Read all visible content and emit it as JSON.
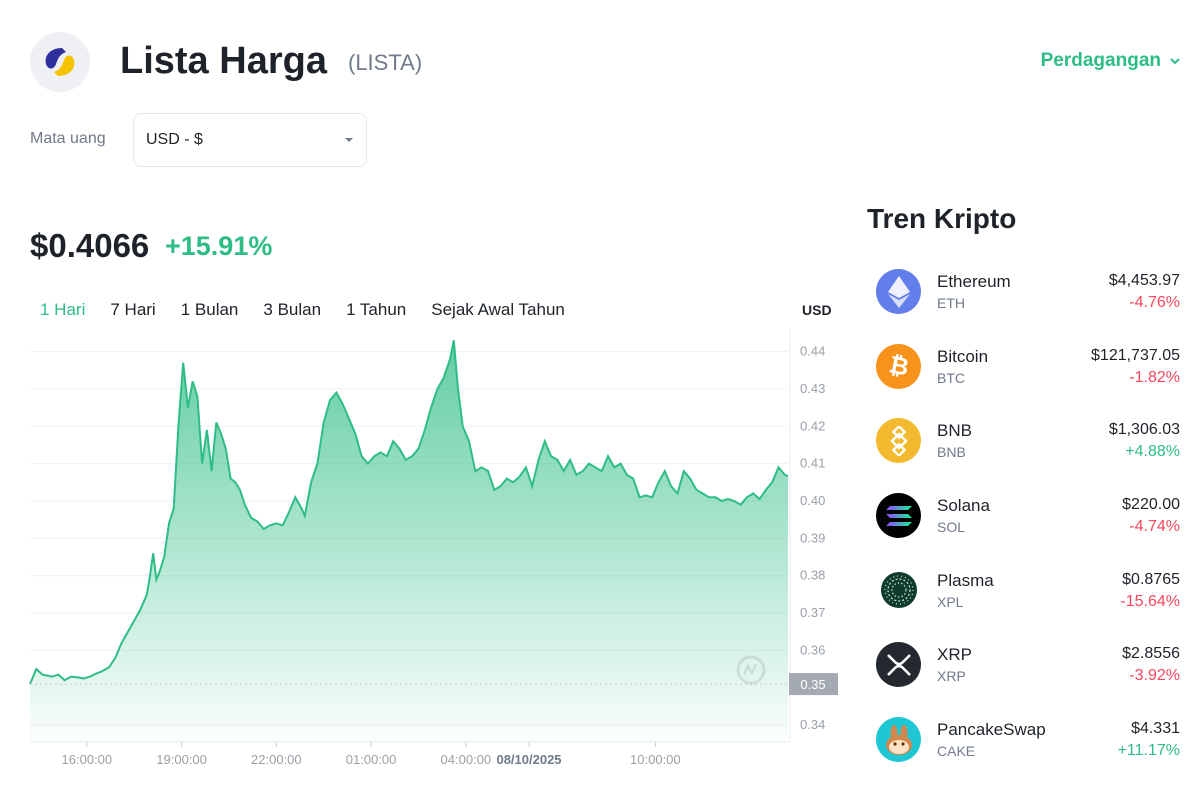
{
  "header": {
    "title": "Lista Harga",
    "symbol": "(LISTA)",
    "trade_label": "Perdagangan"
  },
  "currency": {
    "label": "Mata uang",
    "selected": "USD - $"
  },
  "price": {
    "value": "$0.4066",
    "change": "+15.91%"
  },
  "tabs": [
    "1 Hari",
    "7 Hari",
    "1 Bulan",
    "3 Bulan",
    "1 Tahun",
    "Sejak Awal Tahun"
  ],
  "active_tab": "1 Hari",
  "colors": {
    "up": "#2ebd85",
    "down": "#f6465d",
    "text": "#1e2329",
    "muted": "#707a8a"
  },
  "chart_data": {
    "type": "area",
    "currency_label": "USD",
    "y_ticks": [
      "0.44",
      "0.43",
      "0.42",
      "0.41",
      "0.40",
      "0.39",
      "0.38",
      "0.37",
      "0.36",
      "0.34"
    ],
    "y_tick_values": [
      0.44,
      0.43,
      0.42,
      0.41,
      0.4,
      0.39,
      0.38,
      0.37,
      0.36,
      0.34
    ],
    "ylim": [
      0.3355,
      0.4463
    ],
    "open_price_label": "0.35",
    "open_price": 0.351,
    "x_ticks": [
      "16:00:00",
      "19:00:00",
      "22:00:00",
      "01:00:00",
      "04:00:00",
      "08/10/2025",
      "10:00:00"
    ],
    "x_tick_hours": [
      16,
      19,
      22,
      25,
      28,
      30,
      34
    ],
    "x_range_hours": [
      14.2,
      38.2
    ],
    "series": [
      {
        "points": [
          [
            14.2,
            0.351
          ],
          [
            14.4,
            0.355
          ],
          [
            14.6,
            0.3535
          ],
          [
            14.9,
            0.353
          ],
          [
            15.1,
            0.3535
          ],
          [
            15.3,
            0.352
          ],
          [
            15.5,
            0.353
          ],
          [
            15.7,
            0.3528
          ],
          [
            15.9,
            0.3525
          ],
          [
            16.1,
            0.353
          ],
          [
            16.3,
            0.3538
          ],
          [
            16.5,
            0.3545
          ],
          [
            16.7,
            0.3555
          ],
          [
            16.9,
            0.358
          ],
          [
            17.1,
            0.362
          ],
          [
            17.3,
            0.365
          ],
          [
            17.5,
            0.368
          ],
          [
            17.7,
            0.371
          ],
          [
            17.9,
            0.375
          ],
          [
            18.0,
            0.38
          ],
          [
            18.1,
            0.386
          ],
          [
            18.2,
            0.379
          ],
          [
            18.3,
            0.381
          ],
          [
            18.45,
            0.385
          ],
          [
            18.6,
            0.394
          ],
          [
            18.75,
            0.398
          ],
          [
            18.9,
            0.42
          ],
          [
            19.05,
            0.437
          ],
          [
            19.2,
            0.425
          ],
          [
            19.35,
            0.432
          ],
          [
            19.5,
            0.428
          ],
          [
            19.65,
            0.41
          ],
          [
            19.8,
            0.419
          ],
          [
            19.95,
            0.408
          ],
          [
            20.1,
            0.421
          ],
          [
            20.25,
            0.418
          ],
          [
            20.4,
            0.414
          ],
          [
            20.55,
            0.406
          ],
          [
            20.7,
            0.405
          ],
          [
            20.85,
            0.403
          ],
          [
            21.0,
            0.399
          ],
          [
            21.2,
            0.3955
          ],
          [
            21.4,
            0.3945
          ],
          [
            21.6,
            0.3925
          ],
          [
            21.8,
            0.3935
          ],
          [
            22.0,
            0.394
          ],
          [
            22.2,
            0.3935
          ],
          [
            22.4,
            0.397
          ],
          [
            22.6,
            0.401
          ],
          [
            22.8,
            0.398
          ],
          [
            22.9,
            0.396
          ],
          [
            23.1,
            0.405
          ],
          [
            23.3,
            0.41
          ],
          [
            23.5,
            0.421
          ],
          [
            23.7,
            0.427
          ],
          [
            23.9,
            0.429
          ],
          [
            24.1,
            0.426
          ],
          [
            24.3,
            0.422
          ],
          [
            24.5,
            0.418
          ],
          [
            24.7,
            0.412
          ],
          [
            24.9,
            0.41
          ],
          [
            25.1,
            0.412
          ],
          [
            25.3,
            0.413
          ],
          [
            25.5,
            0.412
          ],
          [
            25.7,
            0.416
          ],
          [
            25.9,
            0.414
          ],
          [
            26.1,
            0.411
          ],
          [
            26.3,
            0.412
          ],
          [
            26.5,
            0.414
          ],
          [
            26.7,
            0.419
          ],
          [
            26.9,
            0.425
          ],
          [
            27.1,
            0.43
          ],
          [
            27.3,
            0.433
          ],
          [
            27.5,
            0.438
          ],
          [
            27.62,
            0.443
          ],
          [
            27.75,
            0.43
          ],
          [
            27.9,
            0.42
          ],
          [
            28.1,
            0.416
          ],
          [
            28.3,
            0.408
          ],
          [
            28.5,
            0.409
          ],
          [
            28.7,
            0.408
          ],
          [
            28.9,
            0.403
          ],
          [
            29.1,
            0.404
          ],
          [
            29.3,
            0.406
          ],
          [
            29.5,
            0.405
          ],
          [
            29.7,
            0.4065
          ],
          [
            29.9,
            0.409
          ],
          [
            30.1,
            0.404
          ],
          [
            30.3,
            0.411
          ],
          [
            30.5,
            0.416
          ],
          [
            30.7,
            0.412
          ],
          [
            30.9,
            0.411
          ],
          [
            31.1,
            0.408
          ],
          [
            31.3,
            0.411
          ],
          [
            31.5,
            0.407
          ],
          [
            31.7,
            0.408
          ],
          [
            31.9,
            0.41
          ],
          [
            32.1,
            0.409
          ],
          [
            32.3,
            0.408
          ],
          [
            32.5,
            0.412
          ],
          [
            32.7,
            0.409
          ],
          [
            32.9,
            0.41
          ],
          [
            33.1,
            0.407
          ],
          [
            33.3,
            0.406
          ],
          [
            33.5,
            0.401
          ],
          [
            33.7,
            0.4015
          ],
          [
            33.9,
            0.401
          ],
          [
            34.1,
            0.405
          ],
          [
            34.3,
            0.408
          ],
          [
            34.5,
            0.404
          ],
          [
            34.7,
            0.402
          ],
          [
            34.9,
            0.408
          ],
          [
            35.1,
            0.406
          ],
          [
            35.3,
            0.403
          ],
          [
            35.5,
            0.402
          ],
          [
            35.7,
            0.401
          ],
          [
            35.9,
            0.401
          ],
          [
            36.1,
            0.4
          ],
          [
            36.3,
            0.4005
          ],
          [
            36.5,
            0.4
          ],
          [
            36.7,
            0.399
          ],
          [
            36.9,
            0.401
          ],
          [
            37.1,
            0.402
          ],
          [
            37.3,
            0.4005
          ],
          [
            37.5,
            0.403
          ],
          [
            37.7,
            0.405
          ],
          [
            37.9,
            0.409
          ],
          [
            38.1,
            0.407
          ],
          [
            38.2,
            0.4066
          ]
        ]
      }
    ]
  },
  "trending": {
    "title": "Tren Kripto",
    "items": [
      {
        "name": "Ethereum",
        "symbol": "ETH",
        "price": "$4,453.97",
        "change": "-4.76%",
        "direction": "down",
        "icon": "ethereum-icon",
        "color": "#627eea"
      },
      {
        "name": "Bitcoin",
        "symbol": "BTC",
        "price": "$121,737.05",
        "change": "-1.82%",
        "direction": "down",
        "icon": "bitcoin-icon",
        "color": "#f7931a"
      },
      {
        "name": "BNB",
        "symbol": "BNB",
        "price": "$1,306.03",
        "change": "+4.88%",
        "direction": "up",
        "icon": "bnb-icon",
        "color": "#f3ba2f"
      },
      {
        "name": "Solana",
        "symbol": "SOL",
        "price": "$220.00",
        "change": "-4.74%",
        "direction": "down",
        "icon": "solana-icon",
        "color": "#000000"
      },
      {
        "name": "Plasma",
        "symbol": "XPL",
        "price": "$0.8765",
        "change": "-15.64%",
        "direction": "down",
        "icon": "plasma-icon",
        "color": "#0f3b2e"
      },
      {
        "name": "XRP",
        "symbol": "XRP",
        "price": "$2.8556",
        "change": "-3.92%",
        "direction": "down",
        "icon": "xrp-icon",
        "color": "#23292f"
      },
      {
        "name": "PancakeSwap",
        "symbol": "CAKE",
        "price": "$4.331",
        "change": "+11.17%",
        "direction": "up",
        "icon": "pancakeswap-icon",
        "color": "#1fc7d4"
      }
    ]
  }
}
